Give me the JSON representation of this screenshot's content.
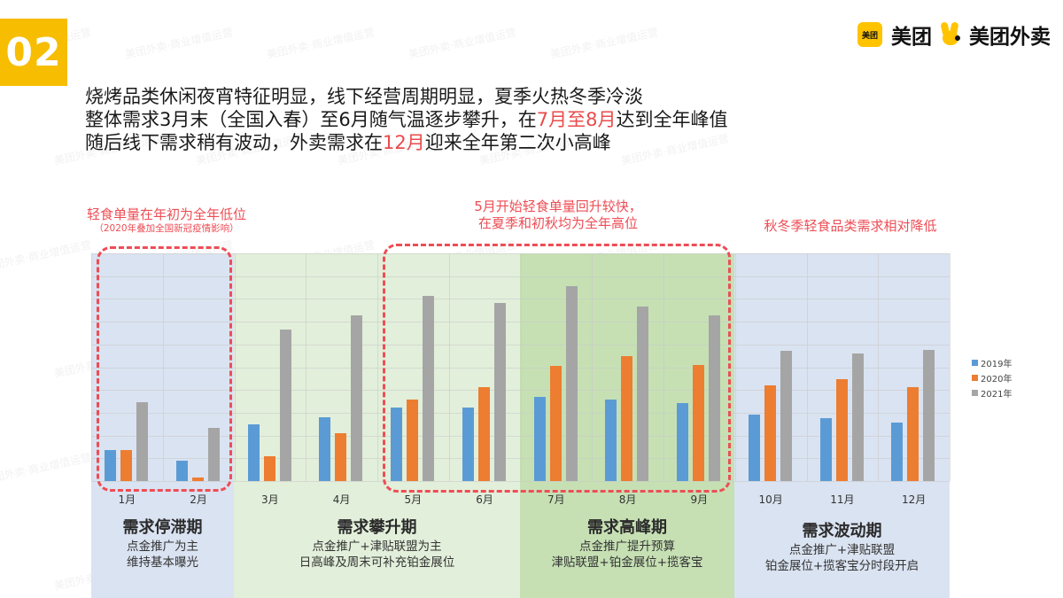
{
  "page": {
    "section_number": "02",
    "logos": {
      "meituan": "美团",
      "meituan_waimai": "美团外卖",
      "meituan_icon_text": "美团"
    },
    "headline": {
      "line1": "烧烤品类休闲夜宵特征明显，线下经营周期明显，夏季火热冬季冷淡",
      "line2_a": "整体需求3月末（全国入春）至6月随气温逐步攀升，在",
      "line2_hl": "7月至8月",
      "line2_b": "达到全年峰值",
      "line3_a": "随后线下需求稍有波动，外卖需求在",
      "line3_hl": "12月",
      "line3_b": "迎来全年第二次小高峰"
    },
    "annotations": [
      {
        "text": "轻食单量在年初为全年低位",
        "sub": "（2020年叠加全国新冠疫情影响）"
      },
      {
        "text": "5月开始轻食单量回升较快，",
        "text2": "在夏季和初秋均为全年高位"
      },
      {
        "text": "秋冬季轻食品类需求相对降低"
      }
    ],
    "phases": [
      {
        "title": "需求停滞期",
        "line1": "点金推广为主",
        "line2": "维持基本曝光"
      },
      {
        "title": "需求攀升期",
        "line1": "点金推广+津贴联盟为主",
        "line2": "日高峰及周末可补充铂金展位"
      },
      {
        "title": "需求高峰期",
        "line1": "点金推广提升预算",
        "line2": "津贴联盟+铂金展位+揽客宝"
      },
      {
        "title": "需求波动期",
        "line1": "点金推广+津贴联盟",
        "line2": "铂金展位+揽客宝分时段开启"
      }
    ],
    "watermark": "美团外卖·商业增值运营",
    "colors": {
      "accent": "#f7bd00",
      "highlight": "#ea4b4b",
      "s2019": "#5b9bd5",
      "s2020": "#ed7d31",
      "s2021": "#a5a5a5",
      "band_blue": "#dae3f1",
      "band_lightgreen": "#e2efda",
      "band_green": "#c6e0b4"
    }
  },
  "chart_data": {
    "type": "bar",
    "title": "",
    "xlabel": "",
    "ylabel": "",
    "categories": [
      "1月",
      "2月",
      "3月",
      "4月",
      "5月",
      "6月",
      "7月",
      "8月",
      "9月",
      "10月",
      "11月",
      "12月"
    ],
    "series": [
      {
        "name": "2019年",
        "values": [
          1.36,
          0.91,
          2.49,
          2.8,
          3.24,
          3.22,
          3.71,
          3.58,
          3.44,
          2.93,
          2.75,
          2.58
        ]
      },
      {
        "name": "2020年",
        "values": [
          1.35,
          0.17,
          1.09,
          2.11,
          3.57,
          4.12,
          5.05,
          5.5,
          5.11,
          4.19,
          4.49,
          4.12
        ]
      },
      {
        "name": "2021年",
        "values": [
          3.46,
          2.35,
          6.64,
          7.28,
          8.12,
          7.83,
          8.55,
          7.67,
          7.28,
          5.72,
          5.61,
          5.77
        ]
      }
    ],
    "ylim": [
      0,
      10
    ],
    "y_units": "relative (gridline units, no axis labels shown)",
    "grid": true,
    "legend_position": "right",
    "phases": [
      {
        "name": "需求停滞期",
        "months": [
          "1月",
          "2月"
        ]
      },
      {
        "name": "需求攀升期",
        "months": [
          "3月",
          "4月",
          "5月",
          "6月"
        ]
      },
      {
        "name": "需求高峰期",
        "months": [
          "7月",
          "8月",
          "9月"
        ]
      },
      {
        "name": "需求波动期",
        "months": [
          "10月",
          "11月",
          "12月"
        ]
      }
    ]
  }
}
